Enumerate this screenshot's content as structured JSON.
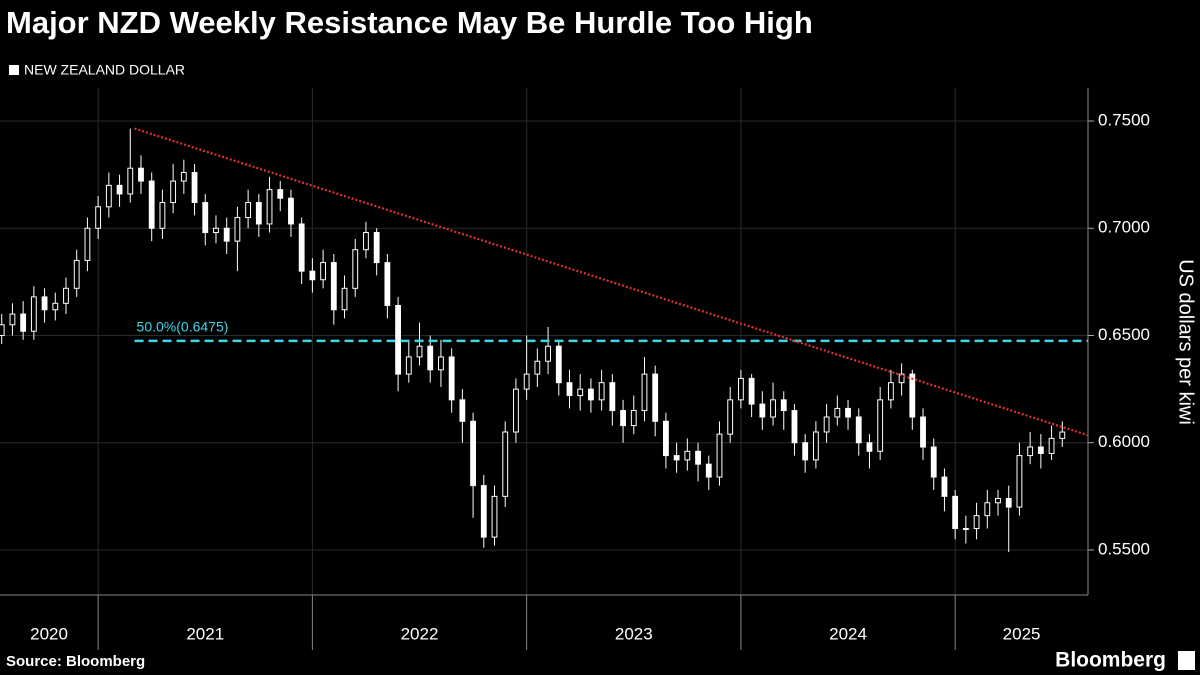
{
  "chart_data": {
    "type": "candlestick",
    "title": "Major NZD Weekly Resistance May Be Hurdle Too High",
    "series_name": "NEW ZEALAND DOLLAR",
    "y_axis_label": "US dollars per kiwi",
    "source": "Source: Bloomberg",
    "brand": "Bloomberg",
    "color": "#ffffff",
    "year_labels": [
      "2020",
      "2021",
      "2022",
      "2023",
      "2024",
      "2025"
    ],
    "year_boundaries": [
      2021,
      2022,
      2023,
      2024,
      2025
    ],
    "xlim": [
      2020.542,
      2025.62
    ],
    "ylim": [
      0.529,
      0.7654
    ],
    "yticks": [
      {
        "value": 0.55,
        "label": "0.5500"
      },
      {
        "value": 0.6,
        "label": "0.6000"
      },
      {
        "value": 0.65,
        "label": "0.6500"
      },
      {
        "value": 0.7,
        "label": "0.7000"
      },
      {
        "value": 0.75,
        "label": "0.7500"
      }
    ],
    "trendline": {
      "x": [
        2021.17,
        2025.62
      ],
      "y": [
        0.7465,
        0.6035
      ],
      "color": "#e0322e"
    },
    "level": {
      "value": 0.6475,
      "label": "50.0%(0.6475)",
      "x_start": 2021.17,
      "color": "#3ad6e8"
    },
    "x": [
      2020.55,
      2020.6,
      2020.65,
      2020.7,
      2020.75,
      2020.8,
      2020.85,
      2020.9,
      2020.95,
      2021.0,
      2021.05,
      2021.1,
      2021.15,
      2021.2,
      2021.25,
      2021.3,
      2021.35,
      2021.4,
      2021.45,
      2021.5,
      2021.55,
      2021.6,
      2021.65,
      2021.7,
      2021.75,
      2021.8,
      2021.85,
      2021.9,
      2021.95,
      2022.0,
      2022.05,
      2022.1,
      2022.15,
      2022.2,
      2022.25,
      2022.3,
      2022.35,
      2022.4,
      2022.45,
      2022.5,
      2022.55,
      2022.6,
      2022.65,
      2022.7,
      2022.75,
      2022.8,
      2022.85,
      2022.9,
      2022.95,
      2023.0,
      2023.05,
      2023.1,
      2023.15,
      2023.2,
      2023.25,
      2023.3,
      2023.35,
      2023.4,
      2023.45,
      2023.5,
      2023.55,
      2023.6,
      2023.65,
      2023.7,
      2023.75,
      2023.8,
      2023.85,
      2023.9,
      2023.95,
      2024.0,
      2024.05,
      2024.1,
      2024.15,
      2024.2,
      2024.25,
      2024.3,
      2024.35,
      2024.4,
      2024.45,
      2024.5,
      2024.55,
      2024.6,
      2024.65,
      2024.7,
      2024.75,
      2024.8,
      2024.85,
      2024.9,
      2024.95,
      2025.0,
      2025.05,
      2025.1,
      2025.15,
      2025.2,
      2025.25,
      2025.3,
      2025.35,
      2025.4,
      2025.45,
      2025.5
    ],
    "open": [
      0.65,
      0.655,
      0.66,
      0.652,
      0.668,
      0.662,
      0.665,
      0.672,
      0.685,
      0.7,
      0.71,
      0.72,
      0.716,
      0.728,
      0.722,
      0.7,
      0.712,
      0.722,
      0.726,
      0.712,
      0.698,
      0.7,
      0.694,
      0.705,
      0.712,
      0.702,
      0.718,
      0.714,
      0.702,
      0.68,
      0.676,
      0.684,
      0.662,
      0.672,
      0.69,
      0.698,
      0.684,
      0.664,
      0.632,
      0.64,
      0.645,
      0.634,
      0.64,
      0.62,
      0.61,
      0.58,
      0.556,
      0.575,
      0.605,
      0.625,
      0.632,
      0.638,
      0.645,
      0.628,
      0.622,
      0.625,
      0.62,
      0.628,
      0.615,
      0.608,
      0.615,
      0.632,
      0.61,
      0.594,
      0.592,
      0.596,
      0.59,
      0.584,
      0.604,
      0.62,
      0.63,
      0.618,
      0.612,
      0.62,
      0.615,
      0.6,
      0.592,
      0.605,
      0.612,
      0.616,
      0.612,
      0.6,
      0.596,
      0.62,
      0.628,
      0.632,
      0.612,
      0.598,
      0.584,
      0.575,
      0.56,
      0.56,
      0.566,
      0.572,
      0.574,
      0.57,
      0.594,
      0.598,
      0.595,
      0.602
    ],
    "high": [
      0.66,
      0.665,
      0.666,
      0.673,
      0.672,
      0.67,
      0.677,
      0.69,
      0.705,
      0.715,
      0.726,
      0.725,
      0.7465,
      0.734,
      0.726,
      0.718,
      0.73,
      0.732,
      0.73,
      0.716,
      0.706,
      0.705,
      0.71,
      0.718,
      0.716,
      0.724,
      0.722,
      0.718,
      0.705,
      0.686,
      0.69,
      0.688,
      0.678,
      0.695,
      0.703,
      0.7,
      0.688,
      0.668,
      0.648,
      0.656,
      0.65,
      0.648,
      0.644,
      0.625,
      0.614,
      0.585,
      0.58,
      0.61,
      0.63,
      0.65,
      0.644,
      0.654,
      0.648,
      0.634,
      0.632,
      0.63,
      0.634,
      0.632,
      0.62,
      0.622,
      0.64,
      0.636,
      0.614,
      0.6,
      0.602,
      0.6,
      0.594,
      0.61,
      0.626,
      0.634,
      0.632,
      0.624,
      0.628,
      0.624,
      0.618,
      0.604,
      0.61,
      0.618,
      0.622,
      0.62,
      0.616,
      0.604,
      0.626,
      0.634,
      0.637,
      0.634,
      0.616,
      0.602,
      0.588,
      0.578,
      0.566,
      0.572,
      0.578,
      0.578,
      0.58,
      0.6,
      0.605,
      0.604,
      0.608,
      0.61
    ],
    "low": [
      0.646,
      0.65,
      0.648,
      0.648,
      0.656,
      0.657,
      0.66,
      0.668,
      0.68,
      0.695,
      0.705,
      0.71,
      0.712,
      0.716,
      0.694,
      0.695,
      0.707,
      0.716,
      0.706,
      0.692,
      0.693,
      0.688,
      0.68,
      0.7,
      0.696,
      0.698,
      0.708,
      0.696,
      0.674,
      0.67,
      0.672,
      0.655,
      0.658,
      0.668,
      0.686,
      0.678,
      0.658,
      0.624,
      0.628,
      0.636,
      0.628,
      0.626,
      0.614,
      0.6,
      0.565,
      0.551,
      0.552,
      0.57,
      0.6,
      0.62,
      0.626,
      0.632,
      0.622,
      0.616,
      0.615,
      0.614,
      0.615,
      0.608,
      0.6,
      0.604,
      0.61,
      0.603,
      0.588,
      0.586,
      0.587,
      0.582,
      0.578,
      0.58,
      0.6,
      0.616,
      0.612,
      0.606,
      0.608,
      0.606,
      0.594,
      0.586,
      0.588,
      0.6,
      0.608,
      0.606,
      0.594,
      0.588,
      0.592,
      0.616,
      0.622,
      0.606,
      0.592,
      0.578,
      0.568,
      0.555,
      0.553,
      0.555,
      0.56,
      0.566,
      0.549,
      0.566,
      0.59,
      0.588,
      0.592,
      0.598
    ],
    "close": [
      0.655,
      0.66,
      0.652,
      0.668,
      0.662,
      0.665,
      0.672,
      0.685,
      0.7,
      0.71,
      0.72,
      0.716,
      0.728,
      0.722,
      0.7,
      0.712,
      0.722,
      0.726,
      0.712,
      0.698,
      0.7,
      0.694,
      0.705,
      0.712,
      0.702,
      0.718,
      0.714,
      0.702,
      0.68,
      0.676,
      0.684,
      0.662,
      0.672,
      0.69,
      0.698,
      0.684,
      0.664,
      0.632,
      0.64,
      0.645,
      0.634,
      0.64,
      0.62,
      0.61,
      0.58,
      0.556,
      0.575,
      0.605,
      0.625,
      0.632,
      0.638,
      0.645,
      0.628,
      0.622,
      0.625,
      0.62,
      0.628,
      0.615,
      0.608,
      0.615,
      0.632,
      0.61,
      0.594,
      0.592,
      0.596,
      0.59,
      0.584,
      0.604,
      0.62,
      0.63,
      0.618,
      0.612,
      0.62,
      0.615,
      0.6,
      0.592,
      0.605,
      0.612,
      0.616,
      0.612,
      0.6,
      0.596,
      0.62,
      0.628,
      0.632,
      0.612,
      0.598,
      0.584,
      0.575,
      0.56,
      0.56,
      0.566,
      0.572,
      0.574,
      0.57,
      0.594,
      0.598,
      0.595,
      0.602,
      0.605
    ]
  }
}
